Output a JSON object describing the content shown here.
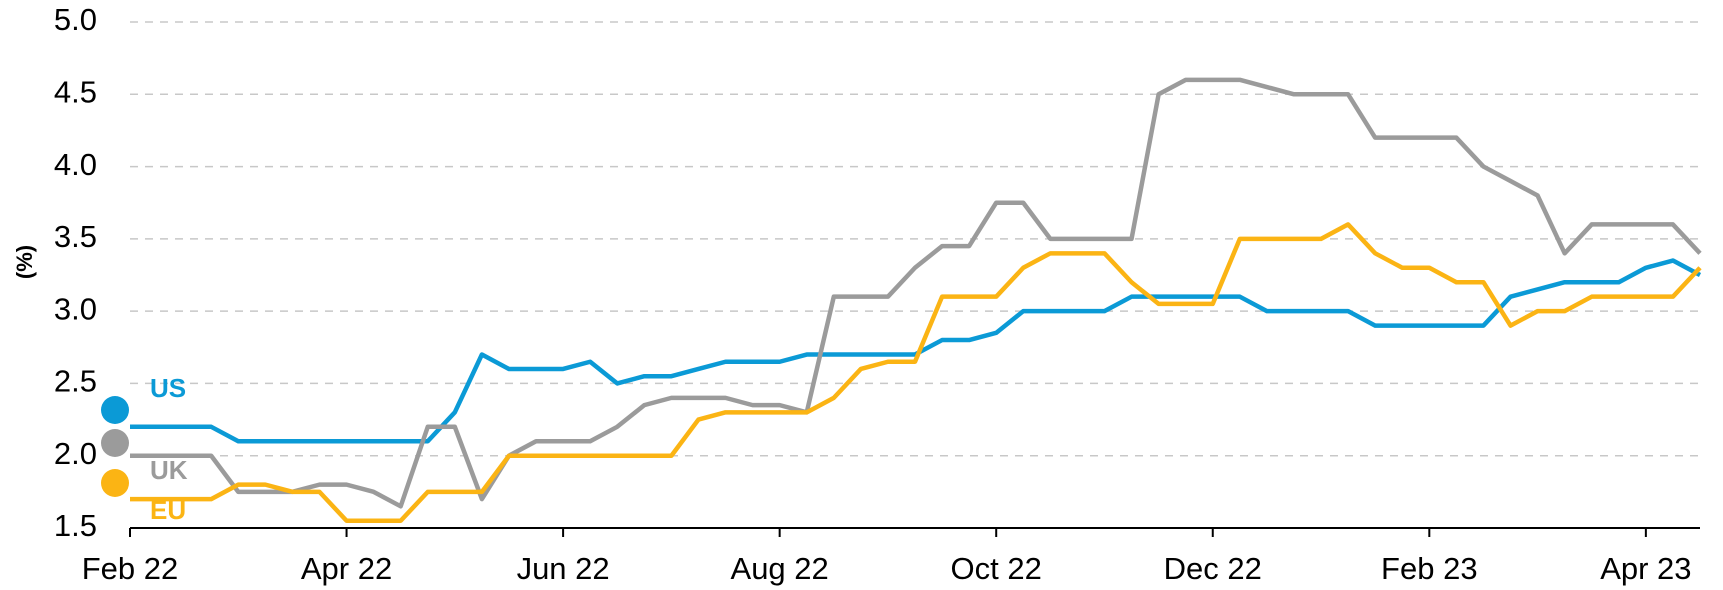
{
  "chart_data": {
    "type": "line",
    "y_label": "(%)",
    "categories": [
      "Feb 22",
      null,
      null,
      null,
      null,
      null,
      null,
      null,
      "Apr 22",
      null,
      null,
      null,
      null,
      null,
      null,
      null,
      "Jun 22",
      null,
      null,
      null,
      null,
      null,
      null,
      null,
      "Aug 22",
      null,
      null,
      null,
      null,
      null,
      null,
      null,
      "Oct 22",
      null,
      null,
      null,
      null,
      null,
      null,
      null,
      "Dec 22",
      null,
      null,
      null,
      null,
      null,
      null,
      null,
      "Feb 23",
      null,
      null,
      null,
      null,
      null,
      null,
      null,
      "Apr 23",
      null,
      null
    ],
    "series": [
      {
        "name": "US",
        "color": "#0b9ad6",
        "values": [
          2.2,
          2.2,
          2.2,
          2.2,
          2.1,
          2.1,
          2.1,
          2.1,
          2.1,
          2.1,
          2.1,
          2.1,
          2.3,
          2.7,
          2.6,
          2.6,
          2.6,
          2.65,
          2.5,
          2.55,
          2.55,
          2.6,
          2.65,
          2.65,
          2.65,
          2.7,
          2.7,
          2.7,
          2.7,
          2.7,
          2.8,
          2.8,
          2.85,
          3.0,
          3.0,
          3.0,
          3.0,
          3.1,
          3.1,
          3.1,
          3.1,
          3.1,
          3.0,
          3.0,
          3.0,
          3.0,
          2.9,
          2.9,
          2.9,
          2.9,
          2.9,
          3.1,
          3.15,
          3.2,
          3.2,
          3.2,
          3.3,
          3.35,
          3.25
        ]
      },
      {
        "name": "UK",
        "color": "#9b9b9b",
        "values": [
          2.0,
          2.0,
          2.0,
          2.0,
          1.75,
          1.75,
          1.75,
          1.8,
          1.8,
          1.75,
          1.65,
          2.2,
          2.2,
          1.7,
          2.0,
          2.1,
          2.1,
          2.1,
          2.2,
          2.35,
          2.4,
          2.4,
          2.4,
          2.35,
          2.35,
          2.3,
          3.1,
          3.1,
          3.1,
          3.3,
          3.45,
          3.45,
          3.75,
          3.75,
          3.5,
          3.5,
          3.5,
          3.5,
          4.5,
          4.6,
          4.6,
          4.6,
          4.55,
          4.5,
          4.5,
          4.5,
          4.2,
          4.2,
          4.2,
          4.2,
          4.0,
          3.9,
          3.8,
          3.4,
          3.6,
          3.6,
          3.6,
          3.6,
          3.4
        ]
      },
      {
        "name": "EU",
        "color": "#fbb414",
        "values": [
          1.7,
          1.7,
          1.7,
          1.7,
          1.8,
          1.8,
          1.75,
          1.75,
          1.55,
          1.55,
          1.55,
          1.75,
          1.75,
          1.75,
          2.0,
          2.0,
          2.0,
          2.0,
          2.0,
          2.0,
          2.0,
          2.25,
          2.3,
          2.3,
          2.3,
          2.3,
          2.4,
          2.6,
          2.65,
          2.65,
          3.1,
          3.1,
          3.1,
          3.3,
          3.4,
          3.4,
          3.4,
          3.2,
          3.05,
          3.05,
          3.05,
          3.5,
          3.5,
          3.5,
          3.5,
          3.6,
          3.4,
          3.3,
          3.3,
          3.2,
          3.2,
          2.9,
          3.0,
          3.0,
          3.1,
          3.1,
          3.1,
          3.1,
          3.3
        ]
      }
    ],
    "ylim": [
      1.5,
      5
    ],
    "yticks": [
      {
        "value": 1.5,
        "label": "1.5"
      },
      {
        "value": 2,
        "label": "2.0"
      },
      2.5,
      {
        "value": 3,
        "label": "3.0"
      },
      3.5,
      {
        "value": 4,
        "label": "4.0"
      },
      4.5,
      {
        "value": 5,
        "label": "5.0"
      }
    ],
    "grid": true
  }
}
